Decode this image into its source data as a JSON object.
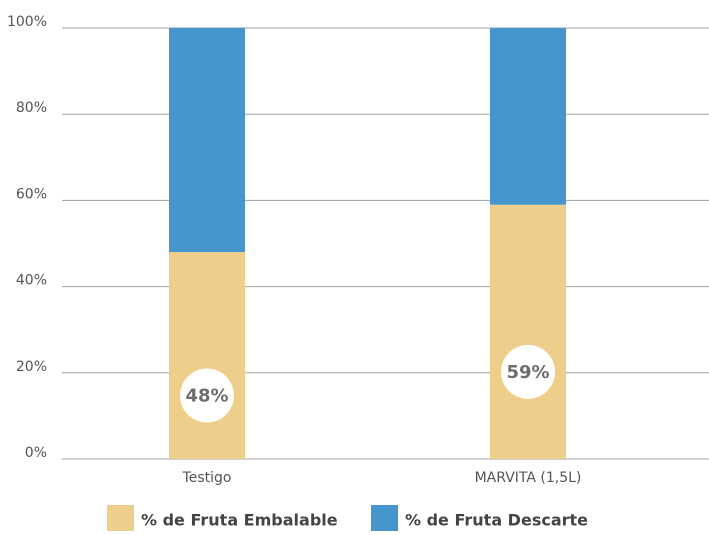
{
  "chart_data": {
    "type": "stacked_bar",
    "categories": [
      "Testigo",
      "MARVITA (1,5L)"
    ],
    "series": [
      {
        "name": "% de Fruta Embalable",
        "color": "#edce8a",
        "values": [
          48,
          59
        ],
        "value_labels": [
          "48%",
          "59%"
        ]
      },
      {
        "name": "% de Fruta Descarte",
        "color": "#4496cd",
        "values": [
          52,
          41
        ]
      }
    ],
    "ylim": [
      0,
      100
    ],
    "yticks": [
      {
        "value": 0,
        "label": "0%"
      },
      {
        "value": 20,
        "label": "20%"
      },
      {
        "value": 40,
        "label": "40%"
      },
      {
        "value": 60,
        "label": "60%"
      },
      {
        "value": 80,
        "label": "80%"
      },
      {
        "value": 100,
        "label": "100%"
      }
    ],
    "grid": true,
    "legend": "bottom"
  }
}
